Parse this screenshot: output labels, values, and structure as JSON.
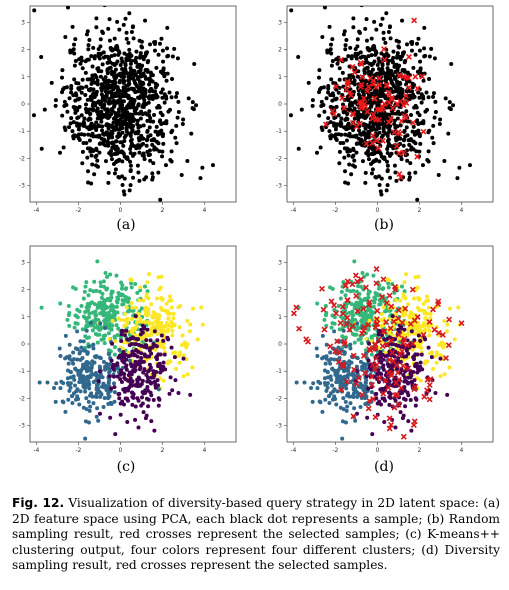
{
  "chart_data": [
    {
      "id": "a",
      "type": "scatter",
      "panel_label": "(a)",
      "xlim": [
        -4.3,
        5.5
      ],
      "ylim": [
        -3.6,
        3.6
      ],
      "xticks": [
        -4,
        -2,
        0,
        2,
        4
      ],
      "yticks": [
        3,
        2,
        1,
        0,
        -1,
        -2,
        -3
      ],
      "series": [
        {
          "role": "samples",
          "marker": "dot",
          "color": "#000000",
          "count": 1000,
          "center": [
            0.0,
            0.0
          ],
          "spread": [
            1.3,
            1.3
          ]
        }
      ]
    },
    {
      "id": "b",
      "type": "scatter",
      "panel_label": "(b)",
      "xlim": [
        -4.3,
        5.5
      ],
      "ylim": [
        -3.6,
        3.6
      ],
      "xticks": [
        -4,
        -2,
        0,
        2,
        4
      ],
      "yticks": [
        3,
        2,
        1,
        0,
        -1,
        -2,
        -3
      ],
      "series": [
        {
          "role": "samples",
          "marker": "dot",
          "color": "#000000",
          "count": 1000,
          "center": [
            0.0,
            0.0
          ],
          "spread": [
            1.3,
            1.3
          ]
        },
        {
          "role": "selected",
          "marker": "cross",
          "color": "#e8191b",
          "count": 100,
          "center": [
            0.0,
            0.0
          ],
          "spread": [
            1.1,
            1.1
          ]
        }
      ]
    },
    {
      "id": "c",
      "type": "scatter",
      "panel_label": "(c)",
      "xlim": [
        -4.3,
        5.5
      ],
      "ylim": [
        -3.6,
        3.6
      ],
      "xticks": [
        -4,
        -2,
        0,
        2,
        4
      ],
      "yticks": [
        3,
        2,
        1,
        0,
        -1,
        -2,
        -3
      ],
      "series": [
        {
          "role": "cluster-1",
          "marker": "dot",
          "color": "#35b779",
          "count": 260,
          "center": [
            -0.6,
            1.1
          ],
          "spread": [
            0.9,
            0.65
          ]
        },
        {
          "role": "cluster-2",
          "marker": "dot",
          "color": "#fde725",
          "count": 250,
          "center": [
            1.6,
            0.5
          ],
          "spread": [
            0.85,
            0.8
          ]
        },
        {
          "role": "cluster-3",
          "marker": "dot",
          "color": "#31688e",
          "count": 240,
          "center": [
            -1.5,
            -1.2
          ],
          "spread": [
            0.75,
            0.75
          ]
        },
        {
          "role": "cluster-4",
          "marker": "dot",
          "color": "#440154",
          "count": 250,
          "center": [
            0.8,
            -1.0
          ],
          "spread": [
            0.75,
            0.85
          ]
        }
      ]
    },
    {
      "id": "d",
      "type": "scatter",
      "panel_label": "(d)",
      "xlim": [
        -4.3,
        5.5
      ],
      "ylim": [
        -3.6,
        3.6
      ],
      "xticks": [
        -4,
        -2,
        0,
        2,
        4
      ],
      "yticks": [
        3,
        2,
        1,
        0,
        -1,
        -2,
        -3
      ],
      "series": [
        {
          "role": "cluster-1",
          "marker": "dot",
          "color": "#35b779",
          "count": 260,
          "center": [
            -0.6,
            1.1
          ],
          "spread": [
            0.9,
            0.65
          ]
        },
        {
          "role": "cluster-2",
          "marker": "dot",
          "color": "#fde725",
          "count": 250,
          "center": [
            1.6,
            0.5
          ],
          "spread": [
            0.85,
            0.8
          ]
        },
        {
          "role": "cluster-3",
          "marker": "dot",
          "color": "#31688e",
          "count": 240,
          "center": [
            -1.5,
            -1.2
          ],
          "spread": [
            0.75,
            0.75
          ]
        },
        {
          "role": "cluster-4",
          "marker": "dot",
          "color": "#440154",
          "count": 250,
          "center": [
            0.8,
            -1.0
          ],
          "spread": [
            0.75,
            0.85
          ]
        },
        {
          "role": "selected",
          "marker": "cross",
          "color": "#d7191c",
          "count": 160,
          "center": [
            0.3,
            0.0
          ],
          "spread": [
            1.6,
            1.5
          ]
        }
      ]
    }
  ],
  "caption": {
    "label": "Fig. 12.",
    "text": "Visualization of diversity-based query strategy in 2D latent space: (a) 2D feature space using PCA, each black dot represents a sample; (b) Random sampling result, red crosses represent the selected samples; (c) K-means++ clustering output, four colors represent four different clusters; (d) Diversity sampling result, red crosses represent the selected samples."
  }
}
